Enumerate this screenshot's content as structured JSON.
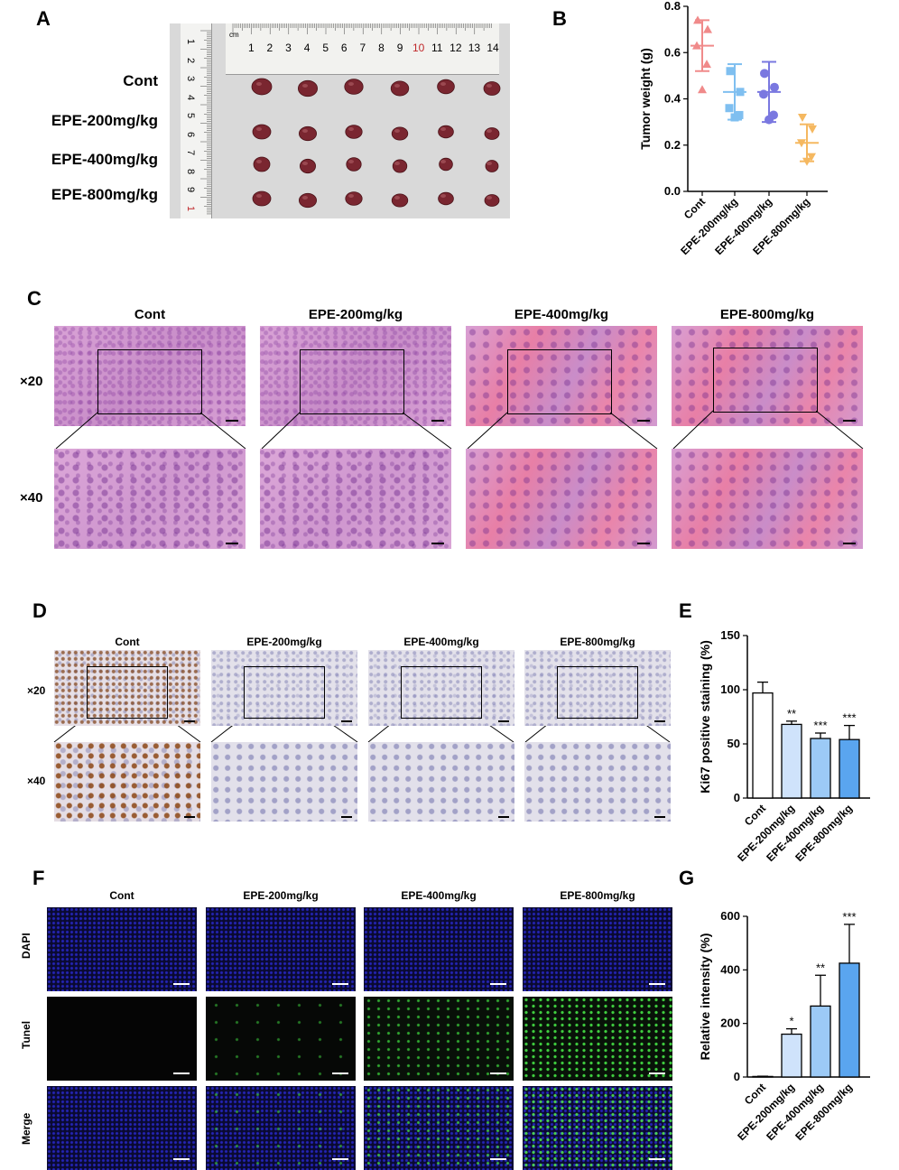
{
  "panels": {
    "A": {
      "label": "A",
      "groups": [
        "Cont",
        "EPE-200mg/kg",
        "EPE-400mg/kg",
        "EPE-800mg/kg"
      ],
      "ruler_top": {
        "unit": "cm",
        "ticks": [
          "1",
          "2",
          "3",
          "4",
          "5",
          "6",
          "7",
          "8",
          "9",
          "10",
          "11",
          "12",
          "13",
          "14"
        ]
      },
      "ruler_left": {
        "unit": "cm",
        "ticks": [
          "1",
          "2",
          "3",
          "4",
          "5",
          "6",
          "7",
          "8",
          "9",
          "1"
        ]
      }
    },
    "B": {
      "label": "B"
    },
    "C": {
      "label": "C",
      "columns": [
        "Cont",
        "EPE-200mg/kg",
        "EPE-400mg/kg",
        "EPE-800mg/kg"
      ],
      "rows": [
        "×20",
        "×40"
      ]
    },
    "D": {
      "label": "D",
      "columns": [
        "Cont",
        "EPE-200mg/kg",
        "EPE-400mg/kg",
        "EPE-800mg/kg"
      ],
      "rows": [
        "×20",
        "×40"
      ]
    },
    "E": {
      "label": "E"
    },
    "F": {
      "label": "F",
      "columns": [
        "Cont",
        "EPE-200mg/kg",
        "EPE-400mg/kg",
        "EPE-800mg/kg"
      ],
      "rows": [
        "DAPI",
        "Tunel",
        "Merge"
      ]
    },
    "G": {
      "label": "G"
    }
  },
  "chart_data": [
    {
      "panel": "B",
      "type": "scatter",
      "categories": [
        "Cont",
        "EPE-200mg/kg",
        "EPE-400mg/kg",
        "EPE-800mg/kg"
      ],
      "ylabel": "Tumor weight (g)",
      "ylim": [
        0,
        0.8
      ],
      "yticks": [
        "0.0",
        "0.2",
        "0.4",
        "0.6",
        "0.8"
      ],
      "colors": [
        "#f08a8a",
        "#7fbff0",
        "#7a78e0",
        "#f5b860"
      ],
      "markers": [
        "triangle-up",
        "square",
        "circle",
        "triangle-down"
      ],
      "points": [
        [
          0.74,
          0.7,
          0.63,
          0.55,
          0.44
        ],
        [
          0.52,
          0.43,
          0.36,
          0.33,
          0.32
        ],
        [
          0.51,
          0.45,
          0.42,
          0.33,
          0.31
        ],
        [
          0.32,
          0.27,
          0.21,
          0.15,
          0.13
        ]
      ],
      "mean": [
        0.63,
        0.43,
        0.43,
        0.21
      ],
      "sd": [
        0.11,
        0.12,
        0.13,
        0.08
      ]
    },
    {
      "panel": "E",
      "type": "bar",
      "categories": [
        "Cont",
        "EPE-200mg/kg",
        "EPE-400mg/kg",
        "EPE-800mg/kg"
      ],
      "ylabel": "Ki67 positive staining (%)",
      "ylim": [
        0,
        150
      ],
      "yticks": [
        "0",
        "50",
        "100",
        "150"
      ],
      "values": [
        97,
        68,
        55,
        54
      ],
      "errors": [
        10,
        3,
        5,
        13
      ],
      "colors": [
        "#ffffff",
        "#cfe3fb",
        "#9ccaf6",
        "#5aa5ef"
      ],
      "significance": [
        "",
        "**",
        "***",
        "***"
      ]
    },
    {
      "panel": "G",
      "type": "bar",
      "categories": [
        "Cont",
        "EPE-200mg/kg",
        "EPE-400mg/kg",
        "EPE-800mg/kg"
      ],
      "ylabel": "Relative intensity (%)",
      "ylim": [
        0,
        600
      ],
      "yticks": [
        "0",
        "200",
        "400",
        "600"
      ],
      "values": [
        2,
        160,
        265,
        425
      ],
      "errors": [
        1,
        20,
        115,
        145
      ],
      "colors": [
        "#ffffff",
        "#cfe3fb",
        "#9ccaf6",
        "#5aa5ef"
      ],
      "significance": [
        "",
        "*",
        "**",
        "***"
      ]
    }
  ]
}
